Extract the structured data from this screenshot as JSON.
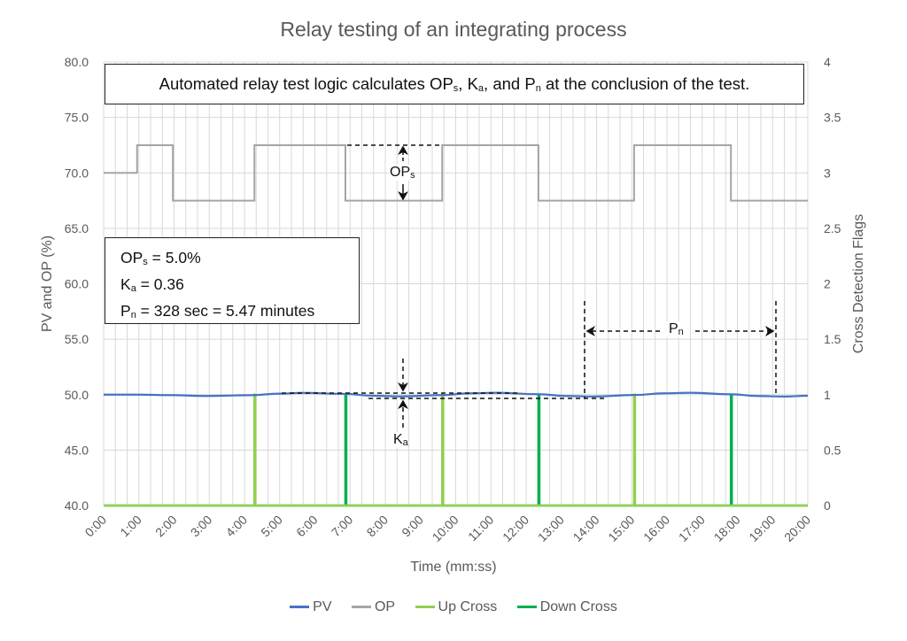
{
  "chart_data": {
    "type": "line",
    "title": "Relay testing of an integrating process",
    "xlabel": "Time (mm:ss)",
    "ylabel": "PV and OP (%)",
    "y2label": "Cross Detection Flags",
    "xlim_seconds": [
      0,
      1200
    ],
    "ylim": [
      40,
      80
    ],
    "y2lim": [
      0,
      4
    ],
    "x_ticks": [
      "0:00",
      "1:00",
      "2:00",
      "3:00",
      "4:00",
      "5:00",
      "6:00",
      "7:00",
      "8:00",
      "9:00",
      "10:00",
      "11:00",
      "12:00",
      "13:00",
      "14:00",
      "15:00",
      "16:00",
      "17:00",
      "18:00",
      "19:00",
      "20:00"
    ],
    "y_ticks": [
      "40.0",
      "45.0",
      "50.0",
      "55.0",
      "60.0",
      "65.0",
      "70.0",
      "75.0",
      "80.0"
    ],
    "y2_ticks": [
      "0",
      "0.5",
      "1",
      "1.5",
      "2",
      "2.5",
      "3",
      "3.5",
      "4"
    ],
    "grid": true,
    "legend_position": "bottom",
    "series": [
      {
        "name": "PV",
        "color": "#4472C4",
        "axis": "left",
        "x": [
          "0:00",
          "1:00",
          "1:50",
          "2:55",
          "4:10",
          "5:00",
          "5:40",
          "6:50",
          "7:40",
          "8:25",
          "9:35",
          "10:25",
          "11:10",
          "12:20",
          "13:10",
          "13:55",
          "15:05",
          "15:55",
          "16:40",
          "17:50",
          "18:35",
          "19:20",
          "20:00"
        ],
        "y": [
          50.0,
          50.0,
          49.96,
          49.88,
          49.95,
          50.09,
          50.16,
          50.07,
          49.9,
          49.84,
          49.96,
          50.12,
          50.17,
          50.04,
          49.88,
          49.83,
          49.97,
          50.12,
          50.17,
          50.03,
          49.88,
          49.83,
          49.9
        ]
      },
      {
        "name": "OP",
        "color": "#A5A5A5",
        "axis": "left",
        "step": true,
        "x": [
          "0:00",
          "0:57",
          "1:58",
          "4:17",
          "6:52",
          "9:37",
          "12:21",
          "15:04",
          "17:49",
          "20:00"
        ],
        "y": [
          70.0,
          72.5,
          67.5,
          72.5,
          67.5,
          72.5,
          67.5,
          72.5,
          67.5,
          67.5
        ]
      },
      {
        "name": "Up Cross",
        "color": "#92D050",
        "axis": "right",
        "pulses_at": [
          "4:17",
          "9:37",
          "15:04"
        ],
        "pulse_value": 1,
        "base_value": 0
      },
      {
        "name": "Down Cross",
        "color": "#00B050",
        "axis": "right",
        "pulses_at": [
          "6:52",
          "12:21",
          "17:49"
        ],
        "pulse_value": 1,
        "base_value": 0
      }
    ]
  },
  "annotations": {
    "top_note": {
      "a": "Automated relay test logic calculates OP",
      "a_sub": "s",
      "b": ", K",
      "b_sub": "a",
      "c": ", and P",
      "c_sub": "n",
      "d": " at the conclusion of the test."
    },
    "info": {
      "l1": "OP",
      "l1_sub": "s",
      "l1_rest": " = 5.0%",
      "l2": "K",
      "l2_sub": "a",
      "l2_rest": " = 0.36",
      "l3": "P",
      "l3_sub": "n",
      "l3_rest": " = 328 sec = 5.47 minutes"
    },
    "ops_label": {
      "main": "OP",
      "sub": "s"
    },
    "ka_label": {
      "main": "K",
      "sub": "a"
    },
    "pn_label": {
      "main": "P",
      "sub": "n"
    }
  }
}
